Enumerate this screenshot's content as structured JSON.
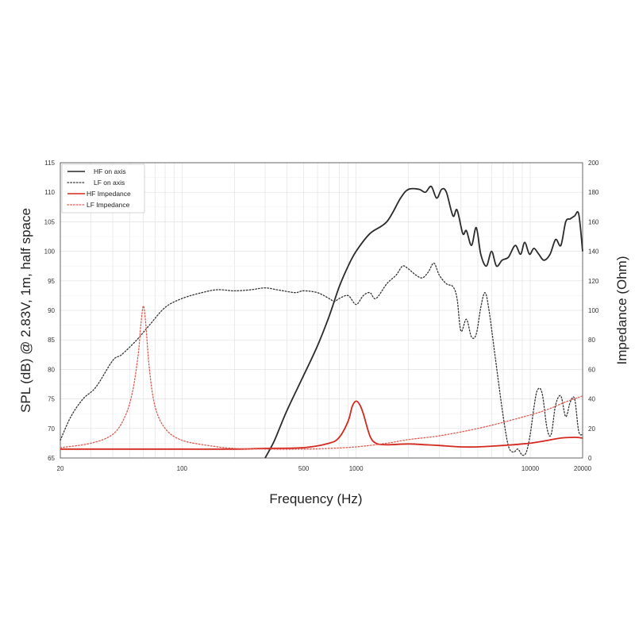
{
  "chart_data": {
    "type": "line",
    "xlabel": "Frequency (Hz)",
    "ylabel_left": "SPL (dB) @ 2.83V, 1m, half space",
    "ylabel_right": "Impedance (Ohm)",
    "x_scale": "log",
    "xlim": [
      20,
      20000
    ],
    "ylim_left": [
      65,
      115
    ],
    "ylim_right": [
      0,
      200
    ],
    "grid": true,
    "legend_position": "top-left",
    "x_ticks": [
      {
        "value": 20,
        "label": "20"
      },
      {
        "value": 100,
        "label": "100"
      },
      {
        "value": 500,
        "label": "500"
      },
      {
        "value": 1000,
        "label": "1000"
      },
      {
        "value": 10000,
        "label": "10000"
      },
      {
        "value": 20000,
        "label": "20000"
      }
    ],
    "y_left_ticks": [
      "65",
      "70",
      "75",
      "80",
      "85",
      "90",
      "95",
      "100",
      "105",
      "110",
      "115"
    ],
    "y_right_ticks": [
      "0",
      "20",
      "40",
      "60",
      "80",
      "100",
      "120",
      "140",
      "160",
      "180",
      "200"
    ],
    "series": [
      {
        "name": "HF on axis",
        "axis": "left",
        "color": "#2b2b2b",
        "dash": "solid",
        "points": [
          [
            300,
            65
          ],
          [
            340,
            68
          ],
          [
            400,
            73
          ],
          [
            500,
            79
          ],
          [
            600,
            84
          ],
          [
            700,
            89
          ],
          [
            800,
            94
          ],
          [
            900,
            97.5
          ],
          [
            1000,
            100
          ],
          [
            1200,
            103
          ],
          [
            1500,
            105
          ],
          [
            1800,
            109
          ],
          [
            2000,
            110.5
          ],
          [
            2300,
            110.5
          ],
          [
            2500,
            110
          ],
          [
            2700,
            111
          ],
          [
            2900,
            109
          ],
          [
            3100,
            110.5
          ],
          [
            3300,
            110
          ],
          [
            3600,
            106
          ],
          [
            3800,
            107
          ],
          [
            4100,
            103
          ],
          [
            4300,
            103.5
          ],
          [
            4600,
            101
          ],
          [
            4900,
            104
          ],
          [
            5200,
            99.5
          ],
          [
            5600,
            97.5
          ],
          [
            6000,
            100
          ],
          [
            6400,
            97.5
          ],
          [
            6900,
            98.5
          ],
          [
            7500,
            99
          ],
          [
            8200,
            101
          ],
          [
            8800,
            99.5
          ],
          [
            9300,
            101.5
          ],
          [
            9900,
            99.5
          ],
          [
            10500,
            100.5
          ],
          [
            11200,
            99.5
          ],
          [
            12000,
            98.5
          ],
          [
            13000,
            99.5
          ],
          [
            14000,
            102
          ],
          [
            15000,
            101
          ],
          [
            16000,
            105
          ],
          [
            17000,
            105.5
          ],
          [
            18000,
            106
          ],
          [
            19000,
            106.3
          ],
          [
            20000,
            100
          ]
        ]
      },
      {
        "name": "LF on axis",
        "axis": "left",
        "color": "#333333",
        "dash": "dotted",
        "points": [
          [
            20,
            68
          ],
          [
            23,
            72
          ],
          [
            27,
            75
          ],
          [
            32,
            77
          ],
          [
            40,
            81.5
          ],
          [
            45,
            82.5
          ],
          [
            55,
            85
          ],
          [
            65,
            87.5
          ],
          [
            80,
            90.5
          ],
          [
            100,
            92
          ],
          [
            130,
            93
          ],
          [
            160,
            93.5
          ],
          [
            200,
            93.3
          ],
          [
            250,
            93.5
          ],
          [
            300,
            93.8
          ],
          [
            350,
            93.5
          ],
          [
            400,
            93.2
          ],
          [
            450,
            93
          ],
          [
            500,
            93.3
          ],
          [
            600,
            93
          ],
          [
            700,
            92
          ],
          [
            750,
            91.5
          ],
          [
            800,
            92
          ],
          [
            900,
            92.5
          ],
          [
            1000,
            91
          ],
          [
            1100,
            92.5
          ],
          [
            1200,
            93
          ],
          [
            1300,
            92
          ],
          [
            1500,
            94.5
          ],
          [
            1700,
            96
          ],
          [
            1850,
            97.5
          ],
          [
            2000,
            97
          ],
          [
            2200,
            96
          ],
          [
            2400,
            95.5
          ],
          [
            2600,
            96.5
          ],
          [
            2800,
            98
          ],
          [
            3000,
            96
          ],
          [
            3300,
            94.5
          ],
          [
            3600,
            94
          ],
          [
            3800,
            92
          ],
          [
            4000,
            86.5
          ],
          [
            4300,
            88.5
          ],
          [
            4600,
            85.5
          ],
          [
            4900,
            86
          ],
          [
            5200,
            90.5
          ],
          [
            5500,
            93
          ],
          [
            5800,
            90
          ],
          [
            6300,
            82
          ],
          [
            7000,
            72
          ],
          [
            7500,
            67
          ],
          [
            8000,
            66
          ],
          [
            8500,
            66.5
          ],
          [
            9000,
            65.5
          ],
          [
            9500,
            66
          ],
          [
            10000,
            69
          ],
          [
            10500,
            73.5
          ],
          [
            11000,
            76.5
          ],
          [
            11700,
            76
          ],
          [
            12500,
            70
          ],
          [
            13200,
            69
          ],
          [
            14000,
            74
          ],
          [
            15000,
            75.5
          ],
          [
            16000,
            72
          ],
          [
            17000,
            74.5
          ],
          [
            18000,
            75
          ],
          [
            19000,
            69.5
          ],
          [
            20000,
            69
          ]
        ]
      },
      {
        "name": "HF Impedance",
        "axis": "right",
        "color": "#d4291f",
        "dash": "solid",
        "points": [
          [
            20,
            6
          ],
          [
            50,
            6
          ],
          [
            100,
            6
          ],
          [
            200,
            6
          ],
          [
            300,
            6.5
          ],
          [
            500,
            7
          ],
          [
            700,
            10
          ],
          [
            800,
            14
          ],
          [
            900,
            25
          ],
          [
            950,
            35
          ],
          [
            1000,
            38.5
          ],
          [
            1050,
            36
          ],
          [
            1100,
            30
          ],
          [
            1200,
            15
          ],
          [
            1300,
            10
          ],
          [
            1500,
            9
          ],
          [
            2000,
            9.5
          ],
          [
            2500,
            9
          ],
          [
            3000,
            8.5
          ],
          [
            4000,
            7.5
          ],
          [
            5000,
            7.5
          ],
          [
            6000,
            8
          ],
          [
            7000,
            8.5
          ],
          [
            8000,
            9
          ],
          [
            9000,
            9.5
          ],
          [
            10000,
            10
          ],
          [
            12000,
            11.5
          ],
          [
            15000,
            13.5
          ],
          [
            18000,
            14
          ],
          [
            20000,
            13.5
          ]
        ]
      },
      {
        "name": "LF Impedance",
        "axis": "right",
        "color": "#e05a50",
        "dash": "dotted",
        "points": [
          [
            20,
            7
          ],
          [
            30,
            10
          ],
          [
            40,
            16
          ],
          [
            47,
            28
          ],
          [
            52,
            45
          ],
          [
            56,
            70
          ],
          [
            58,
            90
          ],
          [
            60,
            103
          ],
          [
            62,
            90
          ],
          [
            65,
            60
          ],
          [
            70,
            35
          ],
          [
            80,
            20
          ],
          [
            100,
            12
          ],
          [
            150,
            8
          ],
          [
            200,
            6.5
          ],
          [
            300,
            6
          ],
          [
            500,
            6
          ],
          [
            700,
            6.5
          ],
          [
            1000,
            7.5
          ],
          [
            1500,
            10
          ],
          [
            2000,
            12.5
          ],
          [
            3000,
            15
          ],
          [
            5000,
            20
          ],
          [
            8000,
            26
          ],
          [
            12000,
            32
          ],
          [
            16000,
            38
          ],
          [
            20000,
            42
          ]
        ]
      }
    ]
  }
}
